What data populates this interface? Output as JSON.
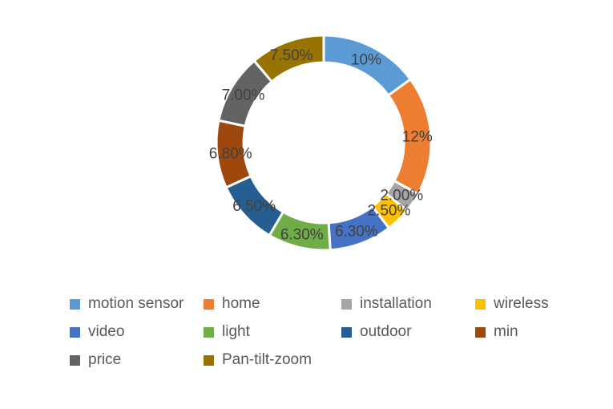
{
  "chart_data": {
    "type": "pie",
    "subtype": "donut",
    "title": "",
    "categories": [
      "motion sensor",
      "home",
      "installation",
      "wireless",
      "video",
      "light",
      "outdoor",
      "min",
      "price",
      "Pan-tilt-zoom"
    ],
    "values": [
      10,
      12,
      2,
      2.5,
      6.3,
      6.3,
      6.5,
      6.8,
      7,
      7.5
    ],
    "data_labels": [
      "10%",
      "12%",
      "2.00%",
      "2.50%",
      "6.30%",
      "6.30%",
      "6.50%",
      "6.80%",
      "7.00%",
      "7.50%"
    ],
    "colors": [
      "#5B9BD5",
      "#ED7D31",
      "#A5A5A5",
      "#FFC000",
      "#4472C4",
      "#70AD47",
      "#255E91",
      "#9E480E",
      "#636363",
      "#997300"
    ],
    "start_angle_deg": 0,
    "direction": "clockwise",
    "donut_hole_ratio": 0.75,
    "grid": "off",
    "legend_position": "bottom",
    "label_color": "#404040",
    "legend_text_color": "#595959",
    "segment_border_color": "#FFFFFF",
    "background_color": "#FFFFFF"
  }
}
